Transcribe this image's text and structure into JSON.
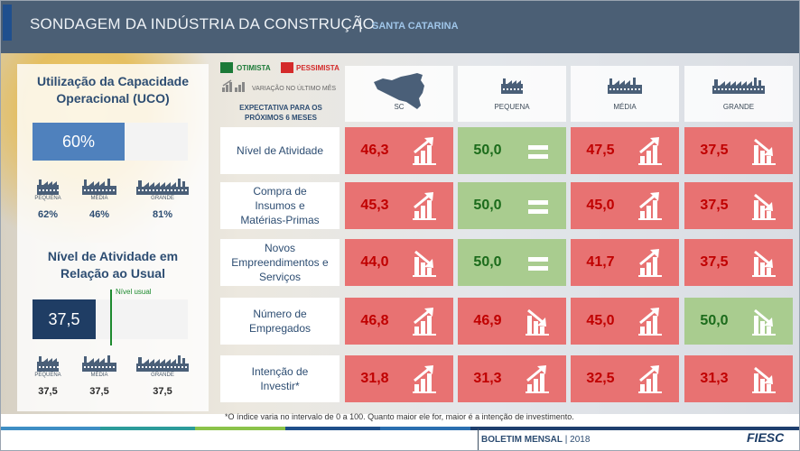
{
  "header": {
    "title": "SONDAGEM DA INDÚSTRIA DA CONSTRUÇÃO",
    "separator": "|",
    "subtitle": "SANTA CATARINA"
  },
  "uco": {
    "title_line1": "Utilização da Capacidade",
    "title_line2": "Operacional (UCO)",
    "value": "60%",
    "sizes": [
      {
        "label": "PEQUENA",
        "value": "62%"
      },
      {
        "label": "MÉDIA",
        "value": "46%"
      },
      {
        "label": "GRANDE",
        "value": "81%"
      }
    ]
  },
  "activity": {
    "title_line1": "Nível de Atividade em",
    "title_line2": "Relação ao Usual",
    "value": "37,5",
    "usual_label": "Nível usual",
    "sizes": [
      {
        "label": "PEQUENA",
        "value": "37,5"
      },
      {
        "label": "MÉDIA",
        "value": "37,5"
      },
      {
        "label": "GRANDE",
        "value": "37,5"
      }
    ]
  },
  "legend": {
    "optimist": "OTIMISTA",
    "pessimist": "PESSIMISTA",
    "variation": "VARIAÇÃO NO ÚLTIMO MÊS",
    "expectation_line1": "EXPECTATIVA PARA OS",
    "expectation_line2": "PRÓXIMOS 6 MESES",
    "optimist_color": "#1c7a38",
    "pessimist_color": "#d42b2b"
  },
  "columns": [
    "SC",
    "PEQUENA",
    "MÉDIA",
    "GRANDE"
  ],
  "rows": [
    {
      "label": "Nível de Atividade",
      "cells": [
        {
          "value": "46,3",
          "status": "red",
          "trend": "up"
        },
        {
          "value": "50,0",
          "status": "green",
          "trend": "equal"
        },
        {
          "value": "47,5",
          "status": "red",
          "trend": "up"
        },
        {
          "value": "37,5",
          "status": "red",
          "trend": "down"
        }
      ]
    },
    {
      "label": "Compra de Insumos e Matérias-Primas",
      "cells": [
        {
          "value": "45,3",
          "status": "red",
          "trend": "up"
        },
        {
          "value": "50,0",
          "status": "green",
          "trend": "equal"
        },
        {
          "value": "45,0",
          "status": "red",
          "trend": "up"
        },
        {
          "value": "37,5",
          "status": "red",
          "trend": "down"
        }
      ]
    },
    {
      "label": "Novos Empreendimentos e Serviços",
      "cells": [
        {
          "value": "44,0",
          "status": "red",
          "trend": "down"
        },
        {
          "value": "50,0",
          "status": "green",
          "trend": "equal"
        },
        {
          "value": "41,7",
          "status": "red",
          "trend": "up"
        },
        {
          "value": "37,5",
          "status": "red",
          "trend": "down"
        }
      ]
    },
    {
      "label": "Número de Empregados",
      "cells": [
        {
          "value": "46,8",
          "status": "red",
          "trend": "up"
        },
        {
          "value": "46,9",
          "status": "red",
          "trend": "down"
        },
        {
          "value": "45,0",
          "status": "red",
          "trend": "up"
        },
        {
          "value": "50,0",
          "status": "green",
          "trend": "down"
        }
      ]
    },
    {
      "label": "Intenção de Investir*",
      "cells": [
        {
          "value": "31,8",
          "status": "red",
          "trend": "up"
        },
        {
          "value": "31,3",
          "status": "red",
          "trend": "up"
        },
        {
          "value": "32,5",
          "status": "red",
          "trend": "up"
        },
        {
          "value": "31,3",
          "status": "red",
          "trend": "down"
        }
      ]
    }
  ],
  "footnote": "*O índice varia no intervalo de 0 a 100. Quanto maior ele for,  maior é a intenção de investimento.",
  "footer": {
    "boletim": "BOLETIM MENSAL",
    "separator": "|",
    "year": "2018",
    "brand": "FIESC",
    "stripe_colors": [
      "#3e8ec4",
      "#2c9c9b",
      "#8bc34a",
      "#1e4f8a",
      "#2a6fb0",
      "#1e3f6e"
    ]
  }
}
